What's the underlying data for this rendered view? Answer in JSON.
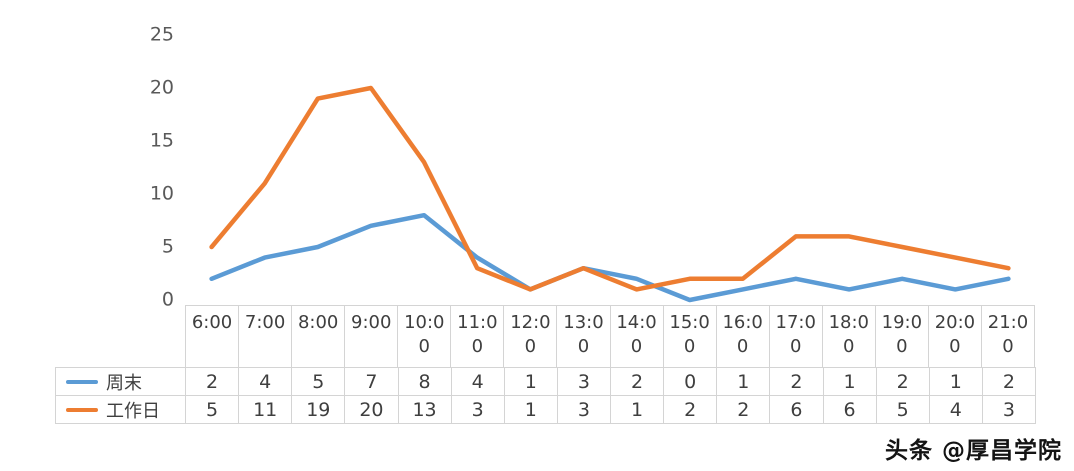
{
  "chart_data": {
    "type": "line",
    "title": "",
    "xlabel": "",
    "ylabel": "",
    "categories": [
      "6:00",
      "7:00",
      "8:00",
      "9:00",
      "10:00",
      "11:00",
      "12:00",
      "13:00",
      "14:00",
      "15:00",
      "16:00",
      "17:00",
      "18:00",
      "19:00",
      "20:00",
      "21:00"
    ],
    "series": [
      {
        "name": "周末",
        "color": "#5B9BD5",
        "values": [
          2,
          4,
          5,
          7,
          8,
          4,
          1,
          3,
          2,
          0,
          1,
          2,
          1,
          2,
          1,
          2
        ]
      },
      {
        "name": "工作日",
        "color": "#ED7D31",
        "values": [
          5,
          11,
          19,
          20,
          13,
          3,
          1,
          3,
          1,
          2,
          2,
          6,
          6,
          5,
          4,
          3
        ]
      }
    ],
    "ylim": [
      0,
      25
    ],
    "yticks": [
      0,
      5,
      10,
      15,
      20,
      25
    ],
    "grid": false,
    "legend_position": "left-of-data-table-rows",
    "data_table_shown": true
  },
  "watermark": "头条 @厚昌学院"
}
